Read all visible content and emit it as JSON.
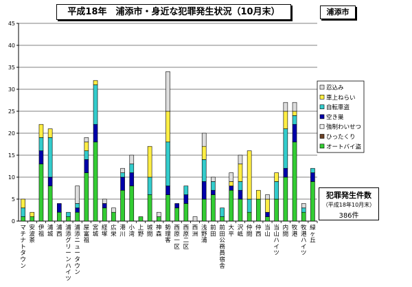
{
  "title": "平成18年　浦添市・身近な犯罪発生状況（10月末）",
  "city_label": "浦添市",
  "total_box": {
    "title": "犯罪発生件数",
    "subtitle": "（平成18年10月末）",
    "count": "386件"
  },
  "chart_data": {
    "type": "bar",
    "stacked": true,
    "title": "平成18年　浦添市・身近な犯罪発生状況（10月末）",
    "xlabel": "",
    "ylabel": "",
    "ylim": [
      0,
      45
    ],
    "yticks": [
      0,
      5,
      10,
      15,
      20,
      25,
      30,
      35,
      40,
      45
    ],
    "grid": true,
    "legend_position": "right",
    "categories": [
      "マチナトタウン",
      "安波茶",
      "伊祖",
      "浦城",
      "浦西",
      "浦添グリーンハイツ",
      "浦添ニュータウン",
      "屋富祖",
      "宮城",
      "経塚",
      "広栄",
      "港川",
      "小湾",
      "上野",
      "城間",
      "神森",
      "勢理客",
      "西原一区",
      "西原二区",
      "西洲",
      "浅野浦",
      "前田",
      "前田公務員宿舎",
      "大平",
      "沢岻",
      "仲間",
      "仲西",
      "当山",
      "当山ハイツ",
      "内間",
      "牧港",
      "牧港ハイツ",
      "緑ヶ丘"
    ],
    "series": [
      {
        "name": "オートバイ盗",
        "color": "#33cc33",
        "values": [
          1,
          1,
          13,
          8,
          2,
          1,
          2,
          11,
          18,
          3,
          2,
          7,
          8,
          1,
          6,
          1,
          6,
          3,
          4,
          0,
          5,
          6,
          1,
          7,
          5,
          2,
          5,
          1,
          5,
          10,
          18,
          2,
          9
        ]
      },
      {
        "name": "ひったくり",
        "color": "#6b4226",
        "values": [
          0,
          0,
          0,
          0,
          0,
          0,
          0,
          0,
          0,
          0,
          0,
          0,
          0,
          0,
          0,
          0,
          0,
          0,
          0,
          0,
          0,
          0,
          0,
          0,
          0,
          0,
          0,
          0,
          0,
          0,
          0,
          0,
          0
        ]
      },
      {
        "name": "強制わいせつ",
        "color": "#f0f0f0",
        "values": [
          0,
          0,
          0,
          0,
          0,
          0,
          0,
          0,
          0,
          0,
          0,
          0,
          0,
          0,
          0,
          0,
          0,
          0,
          0,
          0,
          0,
          0,
          0,
          0,
          0,
          0,
          0,
          0,
          0,
          0,
          0,
          0,
          0
        ]
      },
      {
        "name": "空き巣",
        "color": "#0000aa",
        "values": [
          0,
          0,
          3,
          2,
          2,
          0,
          1,
          3,
          4,
          1,
          0,
          3,
          3,
          0,
          0,
          0,
          2,
          1,
          2,
          0,
          4,
          1,
          0,
          1,
          2,
          0,
          0,
          1,
          0,
          2,
          4,
          0,
          2
        ]
      },
      {
        "name": "自転車盗",
        "color": "#33cccc",
        "values": [
          2,
          0,
          3,
          9,
          0,
          1,
          1,
          2,
          9,
          0,
          0,
          1,
          2,
          0,
          4,
          0,
          10,
          0,
          2,
          0,
          5,
          2,
          2,
          0,
          2,
          3,
          0,
          0,
          4,
          9,
          2,
          1,
          1
        ]
      },
      {
        "name": "車上ねらい",
        "color": "#ffee44",
        "values": [
          2,
          1,
          3,
          2,
          0,
          0,
          0,
          2,
          1,
          0,
          0,
          0,
          0,
          0,
          7,
          0,
          7,
          0,
          0,
          0,
          3,
          0,
          0,
          1,
          4,
          11,
          2,
          3,
          2,
          4,
          1,
          0,
          0
        ]
      },
      {
        "name": "忍込み",
        "color": "#dddddd",
        "values": [
          0,
          0,
          0,
          0,
          0,
          0,
          4,
          1,
          0,
          1,
          1,
          1,
          2,
          0,
          0,
          1,
          9,
          0,
          0,
          1,
          3,
          1,
          0,
          2,
          2,
          0,
          0,
          1,
          0,
          2,
          2,
          1,
          0
        ]
      }
    ]
  }
}
